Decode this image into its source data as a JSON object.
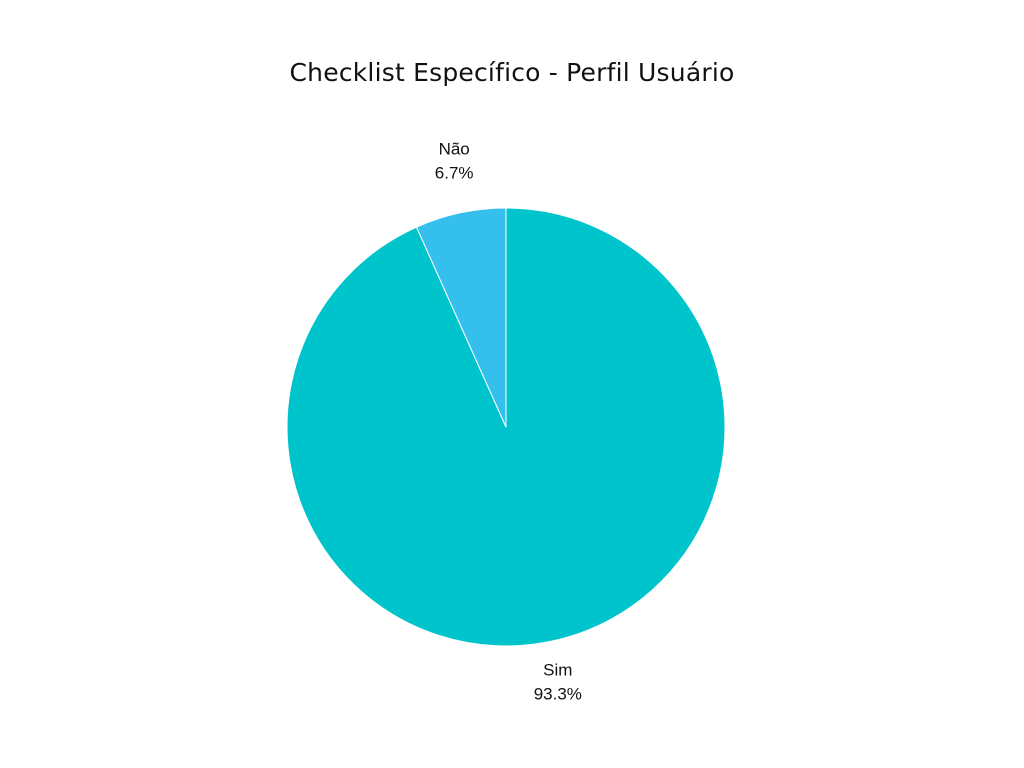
{
  "chart_data": {
    "type": "pie",
    "title": "Checklist Específico - Perfil Usuário",
    "slices": [
      {
        "label": "Sim",
        "value": 93.3,
        "display": "93.3%",
        "color": "#00C4CC"
      },
      {
        "label": "Não",
        "value": 6.7,
        "display": "6.7%",
        "color": "#35BFED"
      }
    ],
    "start_angle": "12 o'clock",
    "direction": "clockwise",
    "legend": "none"
  }
}
